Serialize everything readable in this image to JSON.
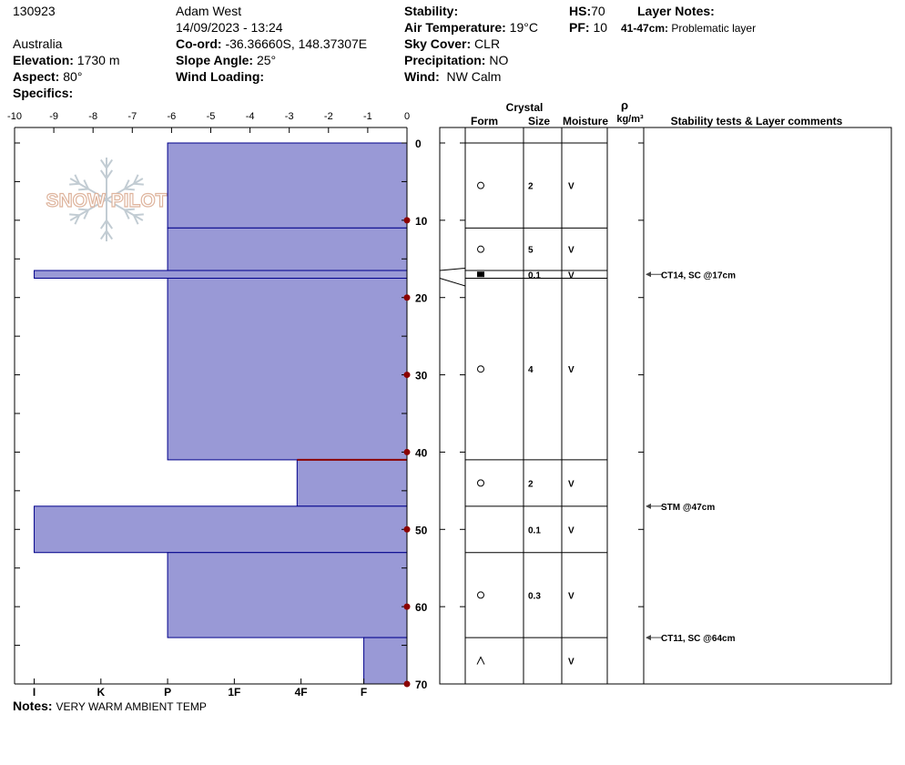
{
  "header": {
    "id": "130923",
    "observer": "Adam West",
    "datetime": "14/09/2023 - 13:24",
    "country": "Australia",
    "elevation_label": "Elevation:",
    "elevation_value": "1730 m",
    "aspect_label": "Aspect:",
    "aspect_value": "80°",
    "specifics_label": "Specifics:",
    "coord_label": "Co-ord:",
    "coord_value": "-36.36660S, 148.37307E",
    "slope_label": "Slope Angle:",
    "slope_value": "25°",
    "wind_loading_label": "Wind Loading:",
    "stability_label": "Stability:",
    "air_temp_label": "Air Temperature:",
    "air_temp_value": "19°C",
    "sky_label": "Sky Cover:",
    "sky_value": "CLR",
    "precip_label": "Precipitation:",
    "precip_value": "NO",
    "wind_label": "Wind:",
    "wind_value": "NW Calm",
    "hs_label": "HS:",
    "hs_value": "70",
    "pf_label": "PF:",
    "pf_value": "10",
    "layer_notes_label": "Layer Notes:",
    "layer_note_range": "41-47cm:",
    "layer_note_text": "Problematic layer"
  },
  "logo_text": "SNOW PILOT",
  "notes_label": "Notes:",
  "notes_value": "VERY WARM AMBIENT TEMP",
  "table_headers": {
    "crystal": "Crystal",
    "form": "Form",
    "size": "Size",
    "moisture": "Moisture",
    "rho": "ρ",
    "density_unit": "kg/m³",
    "comments": "Stability tests & Layer comments"
  },
  "colors": {
    "fill": "#9999d6",
    "stroke": "#00008b",
    "marker": "#8b0000",
    "grid": "#000000"
  },
  "chart_data": {
    "type": "bar",
    "orientation": "horizontal",
    "y_axis": {
      "ylim": [
        0,
        70
      ],
      "direction": "down",
      "ticks": [
        0,
        10,
        20,
        30,
        40,
        50,
        60,
        70
      ]
    },
    "x_axis_temperature": {
      "xlim": [
        -10,
        0
      ],
      "ticks": [
        "-10",
        "-9",
        "-8",
        "-7",
        "-6",
        "-5",
        "-4",
        "-3",
        "-2",
        "-1",
        "0"
      ]
    },
    "x_axis_hardness": {
      "ticks": [
        {
          "label": "I",
          "value": -9.5
        },
        {
          "label": "K",
          "value": -7.8
        },
        {
          "label": "P",
          "value": -6.1
        },
        {
          "label": "1F",
          "value": -4.4
        },
        {
          "label": "4F",
          "value": -2.7
        },
        {
          "label": "F",
          "value": -1.1
        }
      ]
    },
    "layers": [
      {
        "top": 0,
        "bottom": 11,
        "hardness": -6.1,
        "form": "circle",
        "size": "2",
        "moisture": "V"
      },
      {
        "top": 11,
        "bottom": 16.5,
        "hardness": -6.1,
        "form": "circle",
        "size": "5",
        "moisture": "V"
      },
      {
        "top": 16.5,
        "bottom": 17.5,
        "hardness": -9.5,
        "form": "square",
        "size": "0.1",
        "moisture": "V"
      },
      {
        "top": 17.5,
        "bottom": 41,
        "hardness": -6.1,
        "form": "circle",
        "size": "4",
        "moisture": "V"
      },
      {
        "top": 41,
        "bottom": 47,
        "hardness": -2.8,
        "form": "circle",
        "size": "2",
        "moisture": "V"
      },
      {
        "top": 47,
        "bottom": 53,
        "hardness": -9.5,
        "form": "",
        "size": "0.1",
        "moisture": "V"
      },
      {
        "top": 53,
        "bottom": 64,
        "hardness": -6.1,
        "form": "circle",
        "size": "0.3",
        "moisture": "V"
      },
      {
        "top": 64,
        "bottom": 70,
        "hardness": -1.1,
        "form": "caret",
        "size": "",
        "moisture": "V"
      }
    ],
    "temperature_points": [
      {
        "depth": 10,
        "temp": 0
      },
      {
        "depth": 20,
        "temp": 0
      },
      {
        "depth": 30,
        "temp": 0
      },
      {
        "depth": 40,
        "temp": 0
      },
      {
        "depth": 50,
        "temp": 0
      },
      {
        "depth": 60,
        "temp": 0
      },
      {
        "depth": 70,
        "temp": 0
      }
    ],
    "stability_tests": [
      {
        "depth": 17,
        "text": "CT14, SC @17cm"
      },
      {
        "depth": 47,
        "text": "STM @47cm"
      },
      {
        "depth": 64,
        "text": "CT11, SC @64cm"
      }
    ],
    "highlight_depth": 41
  }
}
